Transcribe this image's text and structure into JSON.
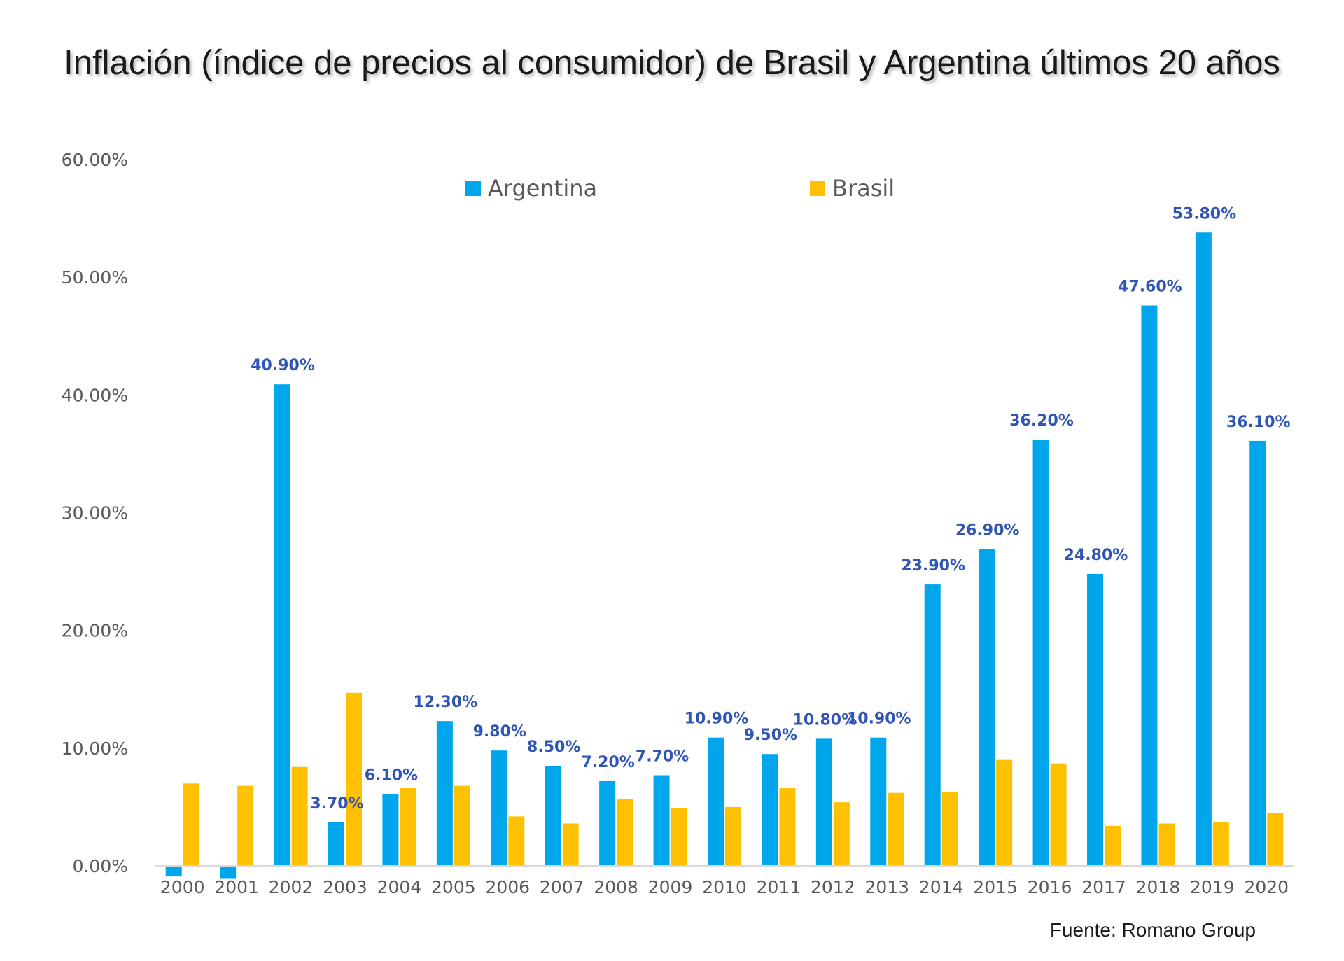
{
  "chart_data": {
    "type": "bar",
    "title": "Inflación (índice de precios al consumidor) de Brasil y Argentina últimos 20 años",
    "xlabel": "",
    "ylabel": "",
    "ylim": [
      0,
      60
    ],
    "yticks": [
      "0.00%",
      "10.00%",
      "20.00%",
      "30.00%",
      "40.00%",
      "50.00%",
      "60.00%"
    ],
    "categories": [
      "2000",
      "2001",
      "2002",
      "2003",
      "2004",
      "2005",
      "2006",
      "2007",
      "2008",
      "2009",
      "2010",
      "2011",
      "2012",
      "2013",
      "2014",
      "2015",
      "2016",
      "2017",
      "2018",
      "2019",
      "2020"
    ],
    "series": [
      {
        "name": "Argentina",
        "color": "#00A6EC",
        "values": [
          -0.9,
          -1.1,
          40.9,
          3.7,
          6.1,
          12.3,
          9.8,
          8.5,
          7.2,
          7.7,
          10.9,
          9.5,
          10.8,
          10.9,
          23.9,
          26.9,
          36.2,
          24.8,
          47.6,
          53.8,
          36.1
        ],
        "data_labels": [
          "",
          "",
          "40.90%",
          "3.70%",
          "6.10%",
          "12.30%",
          "9.80%",
          "8.50%",
          "7.20%",
          "7.70%",
          "10.90%",
          "9.50%",
          "10.80%",
          "10.90%",
          "23.90%",
          "26.90%",
          "36.20%",
          "24.80%",
          "47.60%",
          "53.80%",
          "36.10%"
        ]
      },
      {
        "name": "Brasil",
        "color": "#FFC000",
        "values": [
          7.0,
          6.8,
          8.4,
          14.7,
          6.6,
          6.8,
          4.2,
          3.6,
          5.7,
          4.9,
          5.0,
          6.6,
          5.4,
          6.2,
          6.3,
          9.0,
          8.7,
          3.4,
          3.6,
          3.7,
          4.5
        ],
        "data_labels": []
      }
    ],
    "legend_position": "top-center",
    "grid": false,
    "data_label_color": "#2F55B5",
    "axis_label_color": "#595959"
  },
  "source": "Fuente: Romano Group"
}
